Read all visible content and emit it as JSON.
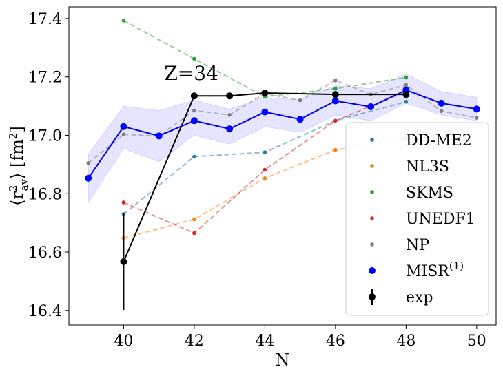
{
  "chart_data": {
    "type": "line",
    "title": "",
    "xlabel": "N",
    "ylabel": "⟨r²av⟩ [fm²]",
    "ylabel_parts": {
      "main": "⟨r",
      "sup": "2",
      "sub": "av",
      "rest": "⟩ [fm",
      "unit_sup": "2",
      "close": "]"
    },
    "xlim": [
      38.45,
      50.55
    ],
    "ylim": [
      16.35,
      17.44
    ],
    "xticks": [
      40,
      42,
      44,
      46,
      48,
      50
    ],
    "yticks": [
      16.4,
      16.6,
      16.8,
      17.0,
      17.2,
      17.4
    ],
    "ytick_labels": [
      "16.4",
      "16.6",
      "16.8",
      "17.0",
      "17.2",
      "17.4"
    ],
    "annotation": "Z=34",
    "grid": false,
    "legend_position": "bottom-right",
    "band": {
      "color": "#0000ff",
      "x": [
        39,
        40,
        41,
        42,
        43,
        44,
        45,
        46,
        47,
        48,
        49,
        50
      ],
      "lower": [
        16.77,
        16.955,
        16.91,
        17.0,
        16.97,
        17.03,
        17.01,
        17.07,
        17.05,
        17.11,
        17.07,
        17.05
      ],
      "upper": [
        16.935,
        17.1,
        17.085,
        17.12,
        17.09,
        17.13,
        17.12,
        17.17,
        17.16,
        17.21,
        17.15,
        17.13
      ]
    },
    "series": [
      {
        "name": "DD-ME2",
        "color": "#1f77b4",
        "style": "dashed",
        "x": [
          40,
          42,
          44,
          46,
          48
        ],
        "y": [
          16.73,
          16.927,
          16.942,
          17.05,
          17.115
        ]
      },
      {
        "name": "NL3S",
        "color": "#ff7f0e",
        "style": "dashed",
        "x": [
          40,
          42,
          44,
          46,
          48
        ],
        "y": [
          16.648,
          16.712,
          16.853,
          16.95,
          16.99
        ]
      },
      {
        "name": "SKMS",
        "color": "#2ca02c",
        "style": "dashed",
        "x": [
          40,
          42,
          44,
          46,
          48
        ],
        "y": [
          17.393,
          17.262,
          17.132,
          17.16,
          17.198
        ]
      },
      {
        "name": "UNEDF1",
        "color": "#d62728",
        "style": "dashed",
        "x": [
          40,
          42,
          44,
          46,
          48
        ],
        "y": [
          16.77,
          16.665,
          16.882,
          17.05,
          17.15
        ]
      },
      {
        "name": "NP",
        "color": "#7f7f7f",
        "style": "dashed",
        "x": [
          39,
          40,
          41,
          42,
          43,
          44,
          45,
          46,
          47,
          48,
          49,
          50
        ],
        "y": [
          16.905,
          17.003,
          16.998,
          17.085,
          17.07,
          17.143,
          17.12,
          17.188,
          17.14,
          17.172,
          17.083,
          17.06
        ]
      },
      {
        "name": "MISR",
        "name_sup": "(1)",
        "color": "#0000ff",
        "style": "solid",
        "x": [
          39,
          40,
          41,
          42,
          43,
          44,
          45,
          46,
          47,
          48,
          49,
          50
        ],
        "y": [
          16.853,
          17.03,
          16.998,
          17.05,
          17.022,
          17.08,
          17.055,
          17.118,
          17.098,
          17.155,
          17.11,
          17.09
        ]
      },
      {
        "name": "exp",
        "color": "#000000",
        "style": "solid",
        "x": [
          40,
          42,
          43,
          44,
          46,
          48
        ],
        "y": [
          16.567,
          17.135,
          17.135,
          17.145,
          17.14,
          17.14
        ],
        "err": [
          0.165,
          0.01,
          0.01,
          0.01,
          0.01,
          0.01
        ]
      }
    ]
  }
}
